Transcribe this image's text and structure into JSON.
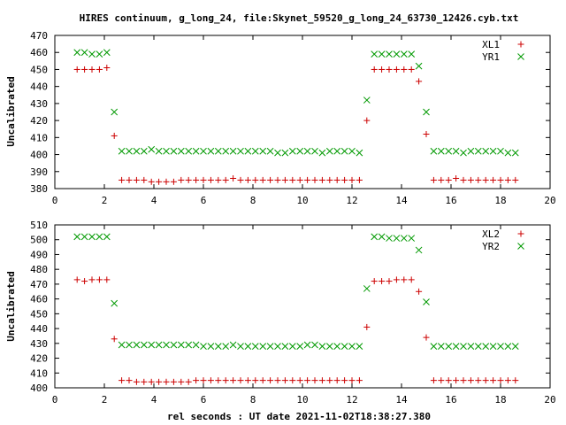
{
  "title": "HIRES continuum, g_long_24, file:Skynet_59520_g_long_24_63730_12426.cyb.txt",
  "xlabel": "rel seconds : UT date 2021-11-02T18:38:27.380",
  "colors": {
    "plus": "#cc0000",
    "cross": "#009900",
    "axis": "#000000"
  },
  "chart_data": [
    {
      "type": "scatter",
      "ylabel": "Uncalibrated",
      "xlim": [
        0,
        20
      ],
      "ylim": [
        380,
        470
      ],
      "xticks": [
        "0",
        "2",
        "4",
        "6",
        "8",
        "10",
        "12",
        "14",
        "16",
        "18",
        "20"
      ],
      "yticks": [
        "380",
        "390",
        "400",
        "410",
        "420",
        "430",
        "440",
        "450",
        "460",
        "470"
      ],
      "legend_position": "top-right",
      "series": [
        {
          "name": "XL1",
          "marker": "plus",
          "x": [
            0.9,
            1.2,
            1.5,
            1.8,
            2.1,
            2.4,
            2.7,
            3.0,
            3.3,
            3.6,
            3.9,
            4.2,
            4.5,
            4.8,
            5.1,
            5.4,
            5.7,
            6.0,
            6.3,
            6.6,
            6.9,
            7.2,
            7.5,
            7.8,
            8.1,
            8.4,
            8.7,
            9.0,
            9.3,
            9.6,
            9.9,
            10.2,
            10.5,
            10.8,
            11.1,
            11.4,
            11.7,
            12.0,
            12.3,
            12.6,
            12.9,
            13.2,
            13.5,
            13.8,
            14.1,
            14.4,
            14.7,
            15.0,
            15.3,
            15.6,
            15.9,
            16.2,
            16.5,
            16.8,
            17.1,
            17.4,
            17.7,
            18.0,
            18.3,
            18.6
          ],
          "y": [
            450,
            450,
            450,
            450,
            451,
            411,
            385,
            385,
            385,
            385,
            384,
            384,
            384,
            384,
            385,
            385,
            385,
            385,
            385,
            385,
            385,
            386,
            385,
            385,
            385,
            385,
            385,
            385,
            385,
            385,
            385,
            385,
            385,
            385,
            385,
            385,
            385,
            385,
            385,
            420,
            450,
            450,
            450,
            450,
            450,
            450,
            443,
            412,
            385,
            385,
            385,
            386,
            385,
            385,
            385,
            385,
            385,
            385,
            385,
            385
          ]
        },
        {
          "name": "YR1",
          "marker": "cross",
          "x": [
            0.9,
            1.2,
            1.5,
            1.8,
            2.1,
            2.4,
            2.7,
            3.0,
            3.3,
            3.6,
            3.9,
            4.2,
            4.5,
            4.8,
            5.1,
            5.4,
            5.7,
            6.0,
            6.3,
            6.6,
            6.9,
            7.2,
            7.5,
            7.8,
            8.1,
            8.4,
            8.7,
            9.0,
            9.3,
            9.6,
            9.9,
            10.2,
            10.5,
            10.8,
            11.1,
            11.4,
            11.7,
            12.0,
            12.3,
            12.6,
            12.9,
            13.2,
            13.5,
            13.8,
            14.1,
            14.4,
            14.7,
            15.0,
            15.3,
            15.6,
            15.9,
            16.2,
            16.5,
            16.8,
            17.1,
            17.4,
            17.7,
            18.0,
            18.3,
            18.6
          ],
          "y": [
            460,
            460,
            459,
            459,
            460,
            425,
            402,
            402,
            402,
            402,
            403,
            402,
            402,
            402,
            402,
            402,
            402,
            402,
            402,
            402,
            402,
            402,
            402,
            402,
            402,
            402,
            402,
            401,
            401,
            402,
            402,
            402,
            402,
            401,
            402,
            402,
            402,
            402,
            401,
            432,
            459,
            459,
            459,
            459,
            459,
            459,
            452,
            425,
            402,
            402,
            402,
            402,
            401,
            402,
            402,
            402,
            402,
            402,
            401,
            401
          ]
        }
      ]
    },
    {
      "type": "scatter",
      "ylabel": "Uncalibrated",
      "xlim": [
        0,
        20
      ],
      "ylim": [
        400,
        510
      ],
      "xticks": [
        "0",
        "2",
        "4",
        "6",
        "8",
        "10",
        "12",
        "14",
        "16",
        "18",
        "20"
      ],
      "yticks": [
        "400",
        "410",
        "420",
        "430",
        "440",
        "450",
        "460",
        "470",
        "480",
        "490",
        "500",
        "510"
      ],
      "legend_position": "top-right",
      "series": [
        {
          "name": "XL2",
          "marker": "plus",
          "x": [
            0.9,
            1.2,
            1.5,
            1.8,
            2.1,
            2.4,
            2.7,
            3.0,
            3.3,
            3.6,
            3.9,
            4.2,
            4.5,
            4.8,
            5.1,
            5.4,
            5.7,
            6.0,
            6.3,
            6.6,
            6.9,
            7.2,
            7.5,
            7.8,
            8.1,
            8.4,
            8.7,
            9.0,
            9.3,
            9.6,
            9.9,
            10.2,
            10.5,
            10.8,
            11.1,
            11.4,
            11.7,
            12.0,
            12.3,
            12.6,
            12.9,
            13.2,
            13.5,
            13.8,
            14.1,
            14.4,
            14.7,
            15.0,
            15.3,
            15.6,
            15.9,
            16.2,
            16.5,
            16.8,
            17.1,
            17.4,
            17.7,
            18.0,
            18.3,
            18.6
          ],
          "y": [
            473,
            472,
            473,
            473,
            473,
            433,
            405,
            405,
            404,
            404,
            404,
            404,
            404,
            404,
            404,
            404,
            405,
            405,
            405,
            405,
            405,
            405,
            405,
            405,
            405,
            405,
            405,
            405,
            405,
            405,
            405,
            405,
            405,
            405,
            405,
            405,
            405,
            405,
            405,
            441,
            472,
            472,
            472,
            473,
            473,
            473,
            465,
            434,
            405,
            405,
            405,
            405,
            405,
            405,
            405,
            405,
            405,
            405,
            405,
            405
          ]
        },
        {
          "name": "YR2",
          "marker": "cross",
          "x": [
            0.9,
            1.2,
            1.5,
            1.8,
            2.1,
            2.4,
            2.7,
            3.0,
            3.3,
            3.6,
            3.9,
            4.2,
            4.5,
            4.8,
            5.1,
            5.4,
            5.7,
            6.0,
            6.3,
            6.6,
            6.9,
            7.2,
            7.5,
            7.8,
            8.1,
            8.4,
            8.7,
            9.0,
            9.3,
            9.6,
            9.9,
            10.2,
            10.5,
            10.8,
            11.1,
            11.4,
            11.7,
            12.0,
            12.3,
            12.6,
            12.9,
            13.2,
            13.5,
            13.8,
            14.1,
            14.4,
            14.7,
            15.0,
            15.3,
            15.6,
            15.9,
            16.2,
            16.5,
            16.8,
            17.1,
            17.4,
            17.7,
            18.0,
            18.3,
            18.6
          ],
          "y": [
            502,
            502,
            502,
            502,
            502,
            457,
            429,
            429,
            429,
            429,
            429,
            429,
            429,
            429,
            429,
            429,
            429,
            428,
            428,
            428,
            428,
            429,
            428,
            428,
            428,
            428,
            428,
            428,
            428,
            428,
            428,
            429,
            429,
            428,
            428,
            428,
            428,
            428,
            428,
            467,
            502,
            502,
            501,
            501,
            501,
            501,
            493,
            458,
            428,
            428,
            428,
            428,
            428,
            428,
            428,
            428,
            428,
            428,
            428,
            428
          ]
        }
      ]
    }
  ]
}
